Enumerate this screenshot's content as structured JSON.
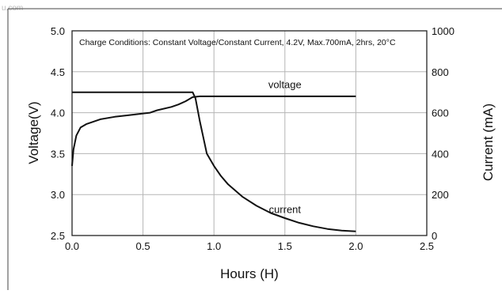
{
  "watermark": "u.com",
  "chart_data": {
    "type": "line",
    "title": "",
    "note": "Charge Conditions: Constant Voltage/Constant Current, 4.2V, Max.700mA, 2hrs, 20°C",
    "xlabel": "Hours (H)",
    "ylabel_left": "Voltage(V)",
    "ylabel_right": "Current (mA)",
    "xlim": [
      0.0,
      2.5
    ],
    "ylim_left": [
      2.5,
      5.0
    ],
    "ylim_right": [
      0,
      1000
    ],
    "x_ticks": [
      "0.0",
      "0.5",
      "1.0",
      "1.5",
      "2.0",
      "2.5"
    ],
    "y_left_ticks": [
      "2.5",
      "3.0",
      "3.5",
      "4.0",
      "4.5",
      "5.0"
    ],
    "y_right_ticks": [
      "0",
      "200",
      "400",
      "600",
      "800",
      "1000"
    ],
    "grid": true,
    "series": [
      {
        "name": "voltage",
        "axis": "left",
        "x": [
          0.0,
          0.01,
          0.03,
          0.06,
          0.1,
          0.2,
          0.3,
          0.4,
          0.5,
          0.55,
          0.6,
          0.7,
          0.75,
          0.8,
          0.85,
          0.9,
          1.0,
          1.5,
          2.0
        ],
        "y": [
          3.35,
          3.55,
          3.72,
          3.82,
          3.86,
          3.92,
          3.95,
          3.97,
          3.99,
          4.0,
          4.03,
          4.07,
          4.1,
          4.14,
          4.19,
          4.2,
          4.2,
          4.2,
          4.2
        ]
      },
      {
        "name": "current",
        "axis": "right",
        "x": [
          0.0,
          0.5,
          0.85,
          0.87,
          0.9,
          0.95,
          1.0,
          1.05,
          1.1,
          1.2,
          1.3,
          1.4,
          1.5,
          1.6,
          1.7,
          1.8,
          1.9,
          2.0
        ],
        "y": [
          700,
          700,
          700,
          670,
          560,
          400,
          340,
          290,
          250,
          190,
          145,
          110,
          85,
          62,
          45,
          32,
          24,
          20
        ]
      }
    ],
    "annotations": [
      {
        "text": "voltage",
        "x": 1.5,
        "y_right": 720
      },
      {
        "text": "current",
        "x": 1.5,
        "y_right": 110
      }
    ]
  }
}
